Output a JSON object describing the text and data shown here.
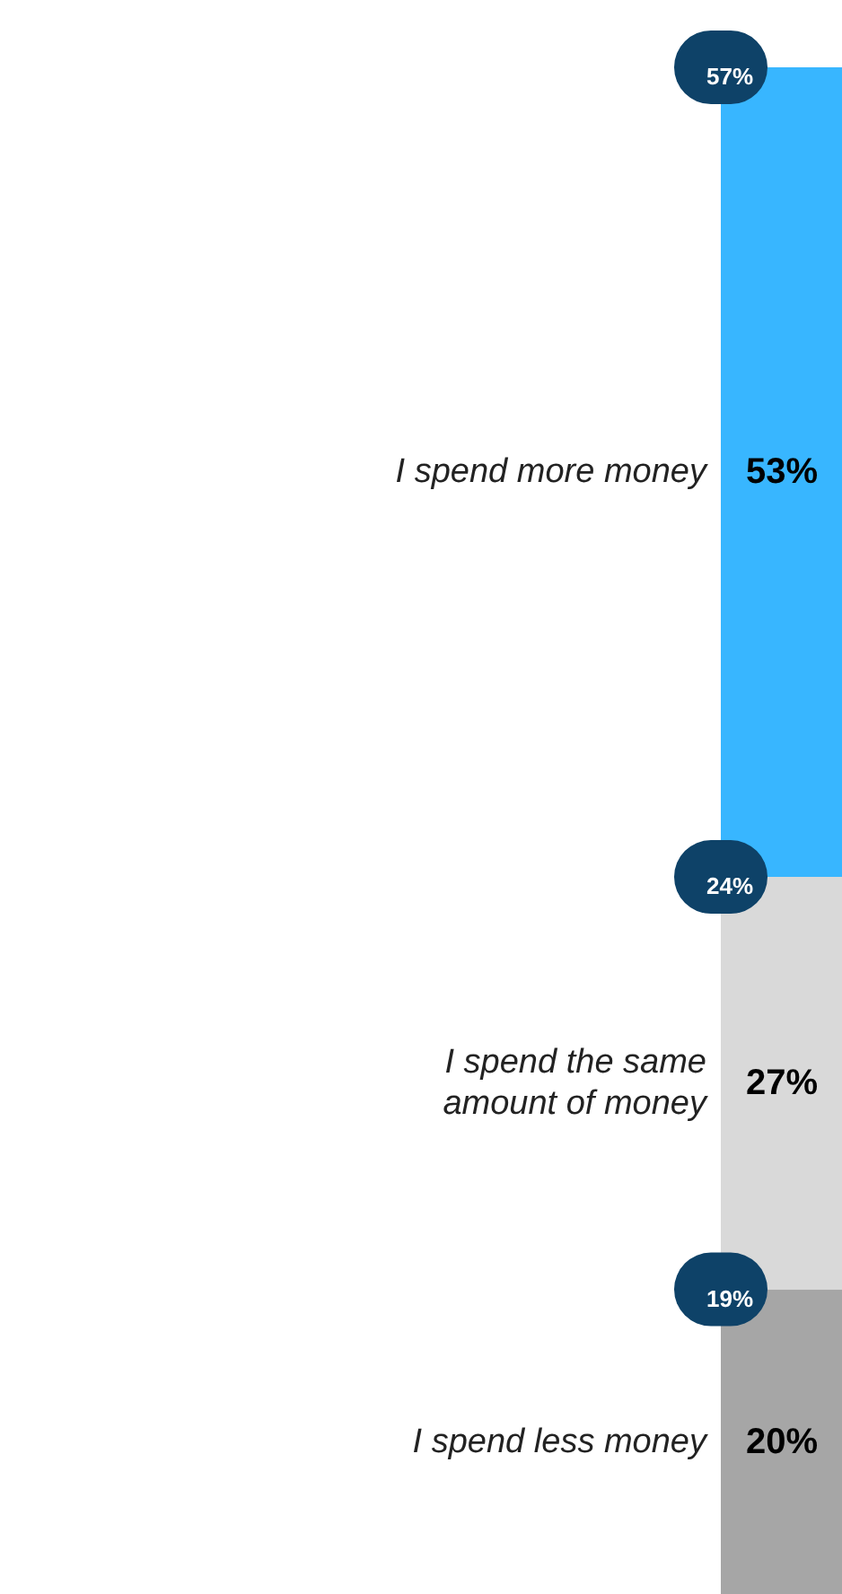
{
  "chart_data": {
    "type": "bar",
    "stacked": true,
    "categories": [
      null
    ],
    "ylim": [
      0,
      100
    ],
    "series": [
      {
        "name": "I spend less money",
        "color": "#a6a6a6",
        "values": [
          20
        ],
        "value_labels": [
          "20%"
        ]
      },
      {
        "name": "I spend the same\namount of money",
        "color": "#d9d9d9",
        "values": [
          27
        ],
        "value_labels": [
          "27%"
        ]
      },
      {
        "name": "I spend more money",
        "color": "#38b6ff",
        "values": [
          53
        ],
        "value_labels": [
          "53%"
        ]
      }
    ],
    "annotations": [
      {
        "text": "19%",
        "y": 20
      },
      {
        "text": "24%",
        "y": 47
      },
      {
        "text": "57%",
        "y": 100
      }
    ]
  }
}
